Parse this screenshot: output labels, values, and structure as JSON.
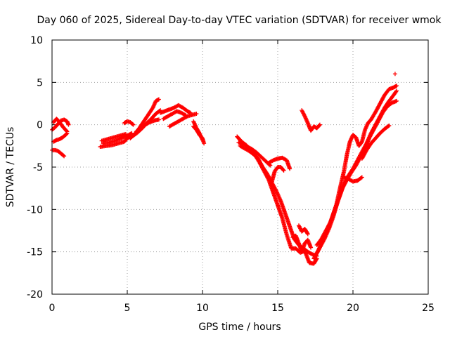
{
  "chart_data": {
    "type": "scatter",
    "title": "Day 060 of 2025, Sidereal Day-to-day VTEC variation (SDTVAR) for receiver wmok",
    "xlabel": "GPS time / hours",
    "ylabel": "SDTVAR / TECUs",
    "xlim": [
      0,
      25
    ],
    "ylim": [
      -20,
      10
    ],
    "xticks": [
      0,
      5,
      10,
      15,
      20,
      25
    ],
    "yticks": [
      -20,
      -15,
      -10,
      -5,
      0,
      5,
      10
    ],
    "grid": true,
    "marker": "+",
    "color": "#ff0000",
    "series": [
      {
        "x": [
          0.0,
          0.2,
          0.4,
          0.6,
          0.8
        ],
        "y": [
          -3.0,
          -3.0,
          -3.1,
          -3.4,
          -3.7
        ]
      },
      {
        "x": [
          0.1,
          0.3,
          0.5,
          0.7,
          0.9,
          1.0
        ],
        "y": [
          -2.0,
          -1.8,
          -1.7,
          -1.5,
          -1.2,
          -1.0
        ]
      },
      {
        "x": [
          0.0,
          0.2,
          0.4,
          0.6,
          0.8,
          1.0,
          1.1
        ],
        "y": [
          -0.6,
          -0.3,
          0.1,
          0.5,
          0.6,
          0.4,
          0.0
        ]
      },
      {
        "x": [
          0.1,
          0.3,
          0.5,
          0.7,
          0.9,
          1.0
        ],
        "y": [
          0.3,
          0.7,
          0.3,
          -0.2,
          -0.6,
          -0.8
        ]
      },
      {
        "x": [
          3.2,
          3.6,
          4.0,
          4.4,
          4.8,
          5.0,
          5.2
        ],
        "y": [
          -2.6,
          -2.5,
          -2.4,
          -2.2,
          -2.0,
          -1.6,
          -1.4
        ]
      },
      {
        "x": [
          3.4,
          3.8,
          4.2,
          4.6,
          5.0,
          5.3
        ],
        "y": [
          -2.2,
          -2.1,
          -1.9,
          -1.6,
          -1.3,
          -1.0
        ]
      },
      {
        "x": [
          3.3,
          3.7,
          4.1,
          4.5,
          4.9
        ],
        "y": [
          -1.9,
          -1.7,
          -1.5,
          -1.3,
          -1.1
        ]
      },
      {
        "x": [
          4.8,
          5.0,
          5.2,
          5.4
        ],
        "y": [
          0.2,
          0.4,
          0.3,
          0.0
        ]
      },
      {
        "x": [
          5.2,
          5.5,
          5.8,
          6.1,
          6.4,
          6.7,
          6.9,
          7.1
        ],
        "y": [
          -1.6,
          -1.1,
          -0.4,
          0.4,
          1.2,
          2.0,
          2.8,
          3.0
        ]
      },
      {
        "x": [
          5.4,
          5.7,
          6.0,
          6.3,
          6.6,
          6.9,
          7.2
        ],
        "y": [
          -1.3,
          -0.9,
          -0.4,
          0.2,
          0.7,
          1.3,
          1.7
        ]
      },
      {
        "x": [
          5.6,
          5.9,
          6.2,
          6.5,
          6.8,
          7.1
        ],
        "y": [
          -0.8,
          -0.4,
          0.0,
          0.3,
          0.5,
          0.6
        ]
      },
      {
        "x": [
          7.2,
          7.5,
          7.8,
          8.1,
          8.4,
          8.7,
          9.0,
          9.2
        ],
        "y": [
          1.4,
          1.6,
          1.8,
          2.0,
          2.3,
          2.0,
          1.6,
          1.4
        ]
      },
      {
        "x": [
          7.4,
          7.7,
          8.0,
          8.3,
          8.6,
          8.9
        ],
        "y": [
          0.7,
          1.0,
          1.3,
          1.6,
          1.4,
          1.1
        ]
      },
      {
        "x": [
          7.8,
          8.4,
          9.0,
          9.6
        ],
        "y": [
          -0.2,
          0.4,
          1.0,
          1.3
        ]
      },
      {
        "x": [
          9.4,
          9.6,
          9.8,
          10.0,
          10.1
        ],
        "y": [
          -0.2,
          -0.6,
          -1.2,
          -1.6,
          -2.2
        ]
      },
      {
        "x": [
          9.4,
          9.6,
          9.8,
          10.0
        ],
        "y": [
          0.4,
          -0.4,
          -1.0,
          -1.8
        ]
      },
      {
        "x": [
          12.3,
          12.6,
          12.9,
          13.2,
          13.5,
          13.8,
          14.1,
          14.4,
          14.7,
          15.0,
          15.3,
          15.6,
          15.9,
          16.2,
          16.5,
          16.8,
          17.1,
          17.4,
          17.6
        ],
        "y": [
          -1.4,
          -2.0,
          -2.4,
          -3.0,
          -3.6,
          -4.5,
          -5.5,
          -6.5,
          -8.0,
          -9.5,
          -11.0,
          -13.0,
          -14.6,
          -14.6,
          -15.1,
          -14.9,
          -16.3,
          -16.4,
          -15.8
        ]
      },
      {
        "x": [
          12.5,
          12.8,
          13.1,
          13.4,
          13.7,
          14.0,
          14.3,
          14.6,
          14.9,
          15.2,
          15.5,
          15.8,
          16.1,
          16.4,
          16.7,
          17.0,
          17.3,
          17.6
        ],
        "y": [
          -2.5,
          -2.8,
          -3.1,
          -3.5,
          -4.0,
          -5.0,
          -5.8,
          -6.8,
          -7.8,
          -9.0,
          -10.5,
          -12.0,
          -13.5,
          -14.2,
          -14.6,
          -15.0,
          -15.3,
          -15.5
        ]
      },
      {
        "x": [
          12.4,
          12.7,
          13.0,
          13.3,
          13.6,
          13.9,
          14.2,
          14.5
        ],
        "y": [
          -2.1,
          -2.3,
          -2.6,
          -2.9,
          -3.3,
          -3.8,
          -4.3,
          -4.8
        ]
      },
      {
        "x": [
          14.4,
          14.7,
          15.0,
          15.3,
          15.6,
          15.8
        ],
        "y": [
          -4.5,
          -4.2,
          -4.0,
          -3.9,
          -4.2,
          -5.2
        ]
      },
      {
        "x": [
          14.6,
          14.8,
          15.0,
          15.2,
          15.4
        ],
        "y": [
          -6.8,
          -5.5,
          -5.0,
          -5.0,
          -5.4
        ]
      },
      {
        "x": [
          16.0,
          16.2,
          16.4,
          16.6,
          16.8,
          17.0,
          17.2
        ],
        "y": [
          -13.3,
          -13.1,
          -14.0,
          -15.0,
          -14.0,
          -13.6,
          -14.5
        ]
      },
      {
        "x": [
          16.4,
          16.6,
          16.8,
          17.0
        ],
        "y": [
          -11.9,
          -12.6,
          -12.3,
          -12.9
        ]
      },
      {
        "x": [
          16.6,
          16.8,
          17.0,
          17.2,
          17.4,
          17.6,
          17.8
        ],
        "y": [
          1.7,
          1.0,
          0.2,
          -0.7,
          -0.2,
          -0.4,
          0.0
        ]
      },
      {
        "x": [
          17.4,
          17.7,
          18.0,
          18.3,
          18.6,
          18.9,
          19.2,
          19.4,
          19.6,
          19.8,
          20.0,
          20.2,
          20.4,
          20.6,
          20.8,
          21.0,
          21.2,
          21.5,
          21.8,
          22.1,
          22.4,
          22.7,
          22.9
        ],
        "y": [
          -15.8,
          -14.8,
          -13.6,
          -12.5,
          -11.0,
          -9.4,
          -7.0,
          -5.5,
          -3.5,
          -2.0,
          -1.2,
          -1.5,
          -2.5,
          -2.0,
          -0.6,
          0.2,
          0.6,
          1.5,
          2.5,
          3.5,
          4.2,
          4.4,
          4.6
        ]
      },
      {
        "x": [
          17.5,
          17.8,
          18.1,
          18.4,
          18.7,
          19.0,
          19.3,
          19.6,
          19.9,
          20.2,
          20.5,
          20.8,
          21.1,
          21.4,
          21.7,
          22.0,
          22.3,
          22.6,
          22.9
        ],
        "y": [
          -15.5,
          -14.5,
          -13.5,
          -12.3,
          -10.8,
          -9.0,
          -7.5,
          -6.5,
          -5.6,
          -4.8,
          -3.8,
          -2.8,
          -1.5,
          -0.5,
          0.5,
          1.5,
          2.2,
          2.6,
          2.8
        ]
      },
      {
        "x": [
          17.6,
          17.9,
          18.2,
          18.5,
          18.8,
          19.1,
          19.4,
          19.7,
          20.0,
          20.3,
          20.6,
          20.9,
          21.2,
          21.5,
          21.8,
          22.1,
          22.4,
          22.7,
          22.9
        ],
        "y": [
          -14.2,
          -13.5,
          -12.5,
          -11.5,
          -10.0,
          -8.5,
          -7.0,
          -6.0,
          -5.2,
          -4.2,
          -3.2,
          -2.2,
          -1.0,
          0.0,
          1.0,
          2.0,
          2.8,
          3.5,
          4.0
        ]
      },
      {
        "x": [
          19.4,
          19.7,
          20.0,
          20.3,
          20.6
        ],
        "y": [
          -6.2,
          -6.4,
          -6.7,
          -6.6,
          -6.2
        ]
      },
      {
        "x": [
          20.6,
          20.9,
          21.2,
          21.5,
          21.8,
          22.1,
          22.4
        ],
        "y": [
          -4.0,
          -3.0,
          -2.2,
          -1.6,
          -1.0,
          -0.5,
          -0.1
        ]
      },
      {
        "x": [
          22.8
        ],
        "y": [
          6.0
        ]
      }
    ]
  }
}
